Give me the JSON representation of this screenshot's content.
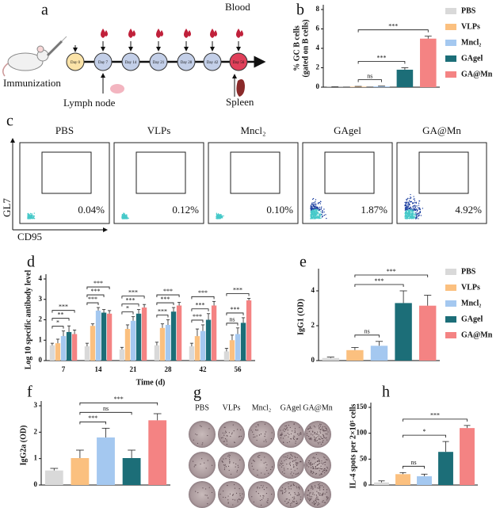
{
  "schematic": {
    "panel": "a",
    "immunization": "Immunization",
    "days": [
      "Day 0",
      "Day 7",
      "Day 14",
      "Day 21",
      "Day 28",
      "Day 42",
      "Day 56"
    ],
    "blood": "Blood",
    "lymph_node": "Lymph node",
    "spleen": "Spleen"
  },
  "flow": {
    "panel": "c",
    "y_axis": "GL7",
    "x_axis": "CD95",
    "samples": [
      {
        "name": "PBS",
        "percent": "0.04%"
      },
      {
        "name": "VLPs",
        "percent": "0.12%"
      },
      {
        "name": "Mncl₂",
        "percent": "0.10%"
      },
      {
        "name": "GAgel",
        "percent": "1.87%"
      },
      {
        "name": "GA@Mn",
        "percent": "4.92%"
      }
    ]
  },
  "wells": {
    "panel": "g",
    "labels": [
      "PBS",
      "VLPs",
      "Mncl₂",
      "GAgel",
      "GA@Mn"
    ]
  },
  "chart_data": [
    {
      "panel": "b",
      "type": "bar",
      "ylabel": [
        "% GC B cells",
        "(gated on B cells)"
      ],
      "categories": [
        "PBS",
        "VLPs",
        "Mncl₂",
        "GAgel",
        "GA@Mn"
      ],
      "colors": [
        "#d9d9d9",
        "#fbc07f",
        "#a4c8f0",
        "#1c6e78",
        "#f48383"
      ],
      "values": [
        0.02,
        0.05,
        0.08,
        1.8,
        5.0
      ],
      "errors": [
        0.02,
        0.03,
        0.03,
        0.2,
        0.25
      ],
      "ylim": [
        0,
        8
      ],
      "yticks": [
        0,
        2,
        4,
        6,
        8
      ],
      "legend": "right",
      "significance": [
        {
          "between": [
            1,
            2
          ],
          "label": "ns"
        },
        {
          "between": [
            1,
            3
          ],
          "label": "***"
        },
        {
          "between": [
            1,
            4
          ],
          "label": "***"
        }
      ]
    },
    {
      "panel": "d",
      "type": "grouped_bar",
      "ylabel": [
        "Log 10 specific antibody level"
      ],
      "xlabel": "Time (d)",
      "categories": [
        "7",
        "14",
        "21",
        "28",
        "42",
        "56"
      ],
      "series": [
        {
          "color": "#d9d9d9",
          "values": [
            0.75,
            0.7,
            0.55,
            0.75,
            0.7,
            0.45
          ],
          "errors": [
            0.1,
            0.15,
            0.1,
            0.15,
            0.15,
            0.15
          ]
        },
        {
          "color": "#fbc07f",
          "values": [
            0.85,
            1.7,
            1.55,
            1.6,
            1.2,
            1.0
          ],
          "errors": [
            0.2,
            0.1,
            0.2,
            0.2,
            0.35,
            0.25
          ]
        },
        {
          "color": "#a4c8f0",
          "values": [
            1.2,
            2.45,
            1.95,
            1.75,
            1.45,
            1.3
          ],
          "errors": [
            0.25,
            0.15,
            0.2,
            0.25,
            0.3,
            0.3
          ]
        },
        {
          "color": "#1c6e78",
          "values": [
            1.4,
            2.35,
            2.3,
            2.4,
            2.0,
            1.85
          ],
          "errors": [
            0.3,
            0.15,
            0.2,
            0.2,
            0.3,
            0.25
          ]
        },
        {
          "color": "#f48383",
          "values": [
            1.3,
            2.3,
            2.6,
            2.7,
            2.7,
            2.95
          ],
          "errors": [
            0.2,
            0.15,
            0.15,
            0.15,
            0.2,
            0.1
          ]
        }
      ],
      "ylim": [
        0,
        4
      ],
      "yticks": [
        0,
        1,
        2,
        3,
        4
      ],
      "significance": [
        {
          "group": 0,
          "between": [
            0,
            2
          ],
          "label": "*"
        },
        {
          "group": 0,
          "between": [
            0,
            3
          ],
          "label": "**"
        },
        {
          "group": 0,
          "between": [
            0,
            4
          ],
          "label": "***"
        },
        {
          "group": 1,
          "between": [
            0,
            2
          ],
          "label": "***"
        },
        {
          "group": 1,
          "between": [
            0,
            3
          ],
          "label": "***"
        },
        {
          "group": 1,
          "between": [
            0,
            4
          ],
          "label": "***"
        },
        {
          "group": 2,
          "between": [
            0,
            2
          ],
          "label": "*"
        },
        {
          "group": 2,
          "between": [
            0,
            3
          ],
          "label": "***"
        },
        {
          "group": 2,
          "between": [
            0,
            4
          ],
          "label": "***"
        },
        {
          "group": 3,
          "between": [
            0,
            2
          ],
          "label": "***"
        },
        {
          "group": 3,
          "between": [
            0,
            3
          ],
          "label": "***"
        },
        {
          "group": 3,
          "between": [
            0,
            4
          ],
          "label": "***"
        },
        {
          "group": 4,
          "between": [
            0,
            2
          ],
          "label": "***"
        },
        {
          "group": 4,
          "between": [
            0,
            3
          ],
          "label": "***"
        },
        {
          "group": 4,
          "between": [
            0,
            4
          ],
          "label": "***"
        },
        {
          "group": 5,
          "between": [
            0,
            2
          ],
          "label": "ns"
        },
        {
          "group": 5,
          "between": [
            0,
            3
          ],
          "label": "***"
        },
        {
          "group": 5,
          "between": [
            0,
            4
          ],
          "label": "***"
        }
      ]
    },
    {
      "panel": "e",
      "type": "bar",
      "ylabel": [
        "IgG1 (OD)"
      ],
      "categories": [
        "PBS",
        "VLPs",
        "Mncl₂",
        "GAgel",
        "GA@Mn"
      ],
      "colors": [
        "#d9d9d9",
        "#fbc07f",
        "#a4c8f0",
        "#1c6e78",
        "#f48383"
      ],
      "values": [
        0.15,
        0.6,
        0.85,
        3.3,
        3.15
      ],
      "errors": [
        0.05,
        0.15,
        0.25,
        0.7,
        0.6
      ],
      "ylim": [
        0,
        5
      ],
      "yticks": [
        0,
        2,
        4
      ],
      "legend": "right",
      "significance": [
        {
          "between": [
            1,
            2
          ],
          "label": "ns"
        },
        {
          "between": [
            1,
            3
          ],
          "label": "***"
        },
        {
          "between": [
            1,
            4
          ],
          "label": "***"
        }
      ]
    },
    {
      "panel": "f",
      "type": "bar",
      "ylabel": [
        "IgG2a (OD)"
      ],
      "colors": [
        "#d9d9d9",
        "#fbc07f",
        "#a4c8f0",
        "#1c6e78",
        "#f48383"
      ],
      "values": [
        0.55,
        1.02,
        1.8,
        1.02,
        2.45
      ],
      "errors": [
        0.08,
        0.3,
        0.35,
        0.3,
        0.25
      ],
      "ylim": [
        0,
        3
      ],
      "yticks": [
        0,
        1,
        2,
        3
      ],
      "significance": [
        {
          "between": [
            1,
            2
          ],
          "label": "***"
        },
        {
          "between": [
            1,
            3
          ],
          "label": "ns"
        },
        {
          "between": [
            1,
            4
          ],
          "label": "***"
        }
      ]
    },
    {
      "panel": "h",
      "type": "bar",
      "ylabel": [
        "IL-4 spots per 2×10⁵ cells"
      ],
      "colors": [
        "#d9d9d9",
        "#fbc07f",
        "#a4c8f0",
        "#1c6e78",
        "#f48383"
      ],
      "values": [
        5,
        21,
        17,
        64,
        110
      ],
      "errors": [
        3,
        3,
        4,
        20,
        5
      ],
      "ylim": [
        0,
        150
      ],
      "yticks": [
        0,
        50,
        100,
        150
      ],
      "significance": [
        {
          "between": [
            1,
            2
          ],
          "label": "ns"
        },
        {
          "between": [
            1,
            3
          ],
          "label": "*"
        },
        {
          "between": [
            1,
            4
          ],
          "label": "***"
        }
      ]
    }
  ]
}
